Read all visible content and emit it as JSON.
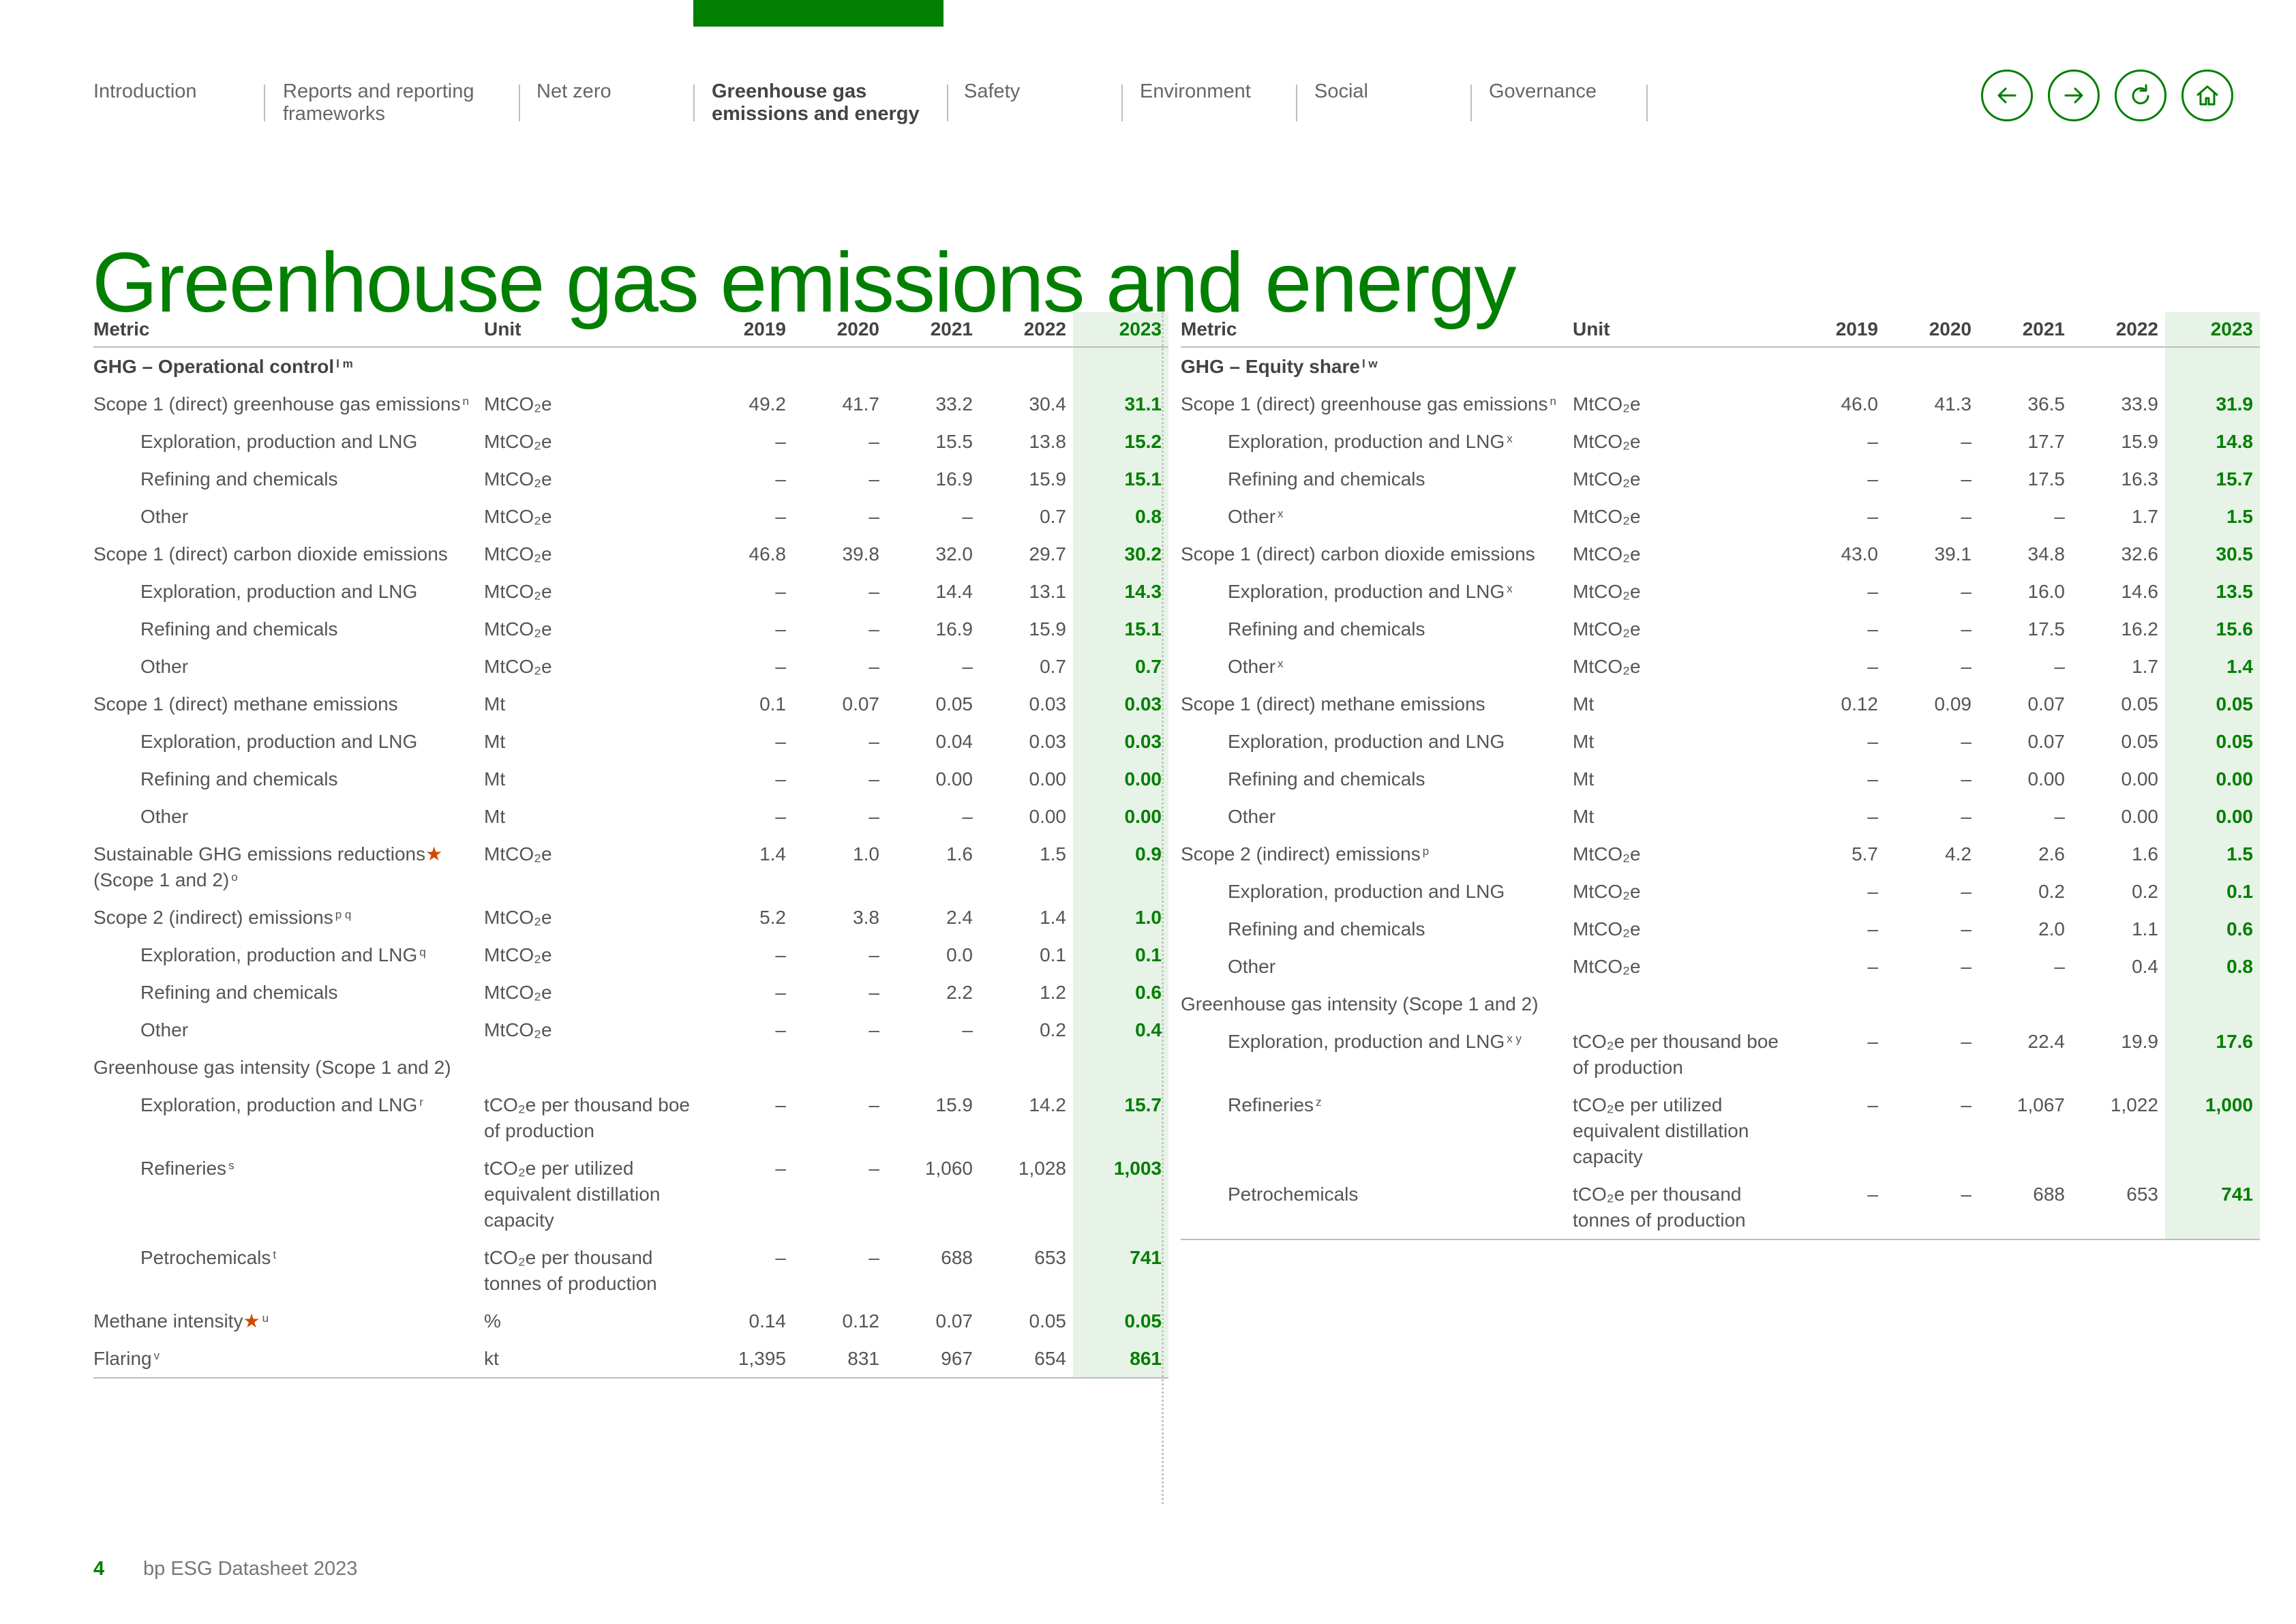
{
  "nav": {
    "items": [
      {
        "label": "Introduction",
        "active": false
      },
      {
        "label": "Reports and reporting frameworks",
        "active": false
      },
      {
        "label": "Net zero",
        "active": false
      },
      {
        "label": "Greenhouse gas emissions and energy",
        "active": true
      },
      {
        "label": "Safety",
        "active": false
      },
      {
        "label": "Environment",
        "active": false
      },
      {
        "label": "Social",
        "active": false
      },
      {
        "label": "Governance",
        "active": false
      }
    ],
    "buttons": [
      "back-arrow-icon",
      "forward-arrow-icon",
      "refresh-icon",
      "home-icon"
    ],
    "accent_color": "#007f00"
  },
  "page_title": "Greenhouse gas emissions and energy",
  "headers": {
    "metric": "Metric",
    "unit": "Unit",
    "years": [
      "2019",
      "2020",
      "2021",
      "2022",
      "2023"
    ]
  },
  "left_table": {
    "rows": [
      {
        "type": "section",
        "metric": "GHG – Operational control",
        "sup": "l m",
        "unit": "",
        "values": [
          "",
          "",
          "",
          "",
          ""
        ]
      },
      {
        "metric": "Scope 1 (direct) greenhouse gas emissions",
        "sup": "n",
        "unit": "MtCO₂e",
        "values": [
          "49.2",
          "41.7",
          "33.2",
          "30.4",
          "31.1"
        ]
      },
      {
        "indent": true,
        "metric": "Exploration, production and LNG",
        "unit": "MtCO₂e",
        "values": [
          "–",
          "–",
          "15.5",
          "13.8",
          "15.2"
        ]
      },
      {
        "indent": true,
        "metric": "Refining and chemicals",
        "unit": "MtCO₂e",
        "values": [
          "–",
          "–",
          "16.9",
          "15.9",
          "15.1"
        ]
      },
      {
        "indent": true,
        "metric": "Other",
        "unit": "MtCO₂e",
        "values": [
          "–",
          "–",
          "–",
          "0.7",
          "0.8"
        ]
      },
      {
        "metric": "Scope 1 (direct) carbon dioxide emissions",
        "unit": "MtCO₂e",
        "values": [
          "46.8",
          "39.8",
          "32.0",
          "29.7",
          "30.2"
        ]
      },
      {
        "indent": true,
        "metric": "Exploration, production and LNG",
        "unit": "MtCO₂e",
        "values": [
          "–",
          "–",
          "14.4",
          "13.1",
          "14.3"
        ]
      },
      {
        "indent": true,
        "metric": "Refining and chemicals",
        "unit": "MtCO₂e",
        "values": [
          "–",
          "–",
          "16.9",
          "15.9",
          "15.1"
        ]
      },
      {
        "indent": true,
        "metric": "Other",
        "unit": "MtCO₂e",
        "values": [
          "–",
          "–",
          "–",
          "0.7",
          "0.7"
        ]
      },
      {
        "metric": "Scope 1 (direct) methane emissions",
        "unit": "Mt",
        "values": [
          "0.1",
          "0.07",
          "0.05",
          "0.03",
          "0.03"
        ]
      },
      {
        "indent": true,
        "metric": "Exploration, production and LNG",
        "unit": "Mt",
        "values": [
          "–",
          "–",
          "0.04",
          "0.03",
          "0.03"
        ]
      },
      {
        "indent": true,
        "metric": "Refining and chemicals",
        "unit": "Mt",
        "values": [
          "–",
          "–",
          "0.00",
          "0.00",
          "0.00"
        ]
      },
      {
        "indent": true,
        "metric": "Other",
        "unit": "Mt",
        "values": [
          "–",
          "–",
          "–",
          "0.00",
          "0.00"
        ]
      },
      {
        "metric": "Sustainable GHG emissions reductions",
        "star": "★",
        "metric2": "(Scope 1 and 2)",
        "sup": "o",
        "unit": "MtCO₂e",
        "values": [
          "1.4",
          "1.0",
          "1.6",
          "1.5",
          "0.9"
        ]
      },
      {
        "metric": "Scope 2 (indirect) emissions",
        "sup": "p q",
        "unit": "MtCO₂e",
        "values": [
          "5.2",
          "3.8",
          "2.4",
          "1.4",
          "1.0"
        ]
      },
      {
        "indent": true,
        "metric": "Exploration, production and LNG",
        "sup": "q",
        "unit": "MtCO₂e",
        "values": [
          "–",
          "–",
          "0.0",
          "0.1",
          "0.1"
        ]
      },
      {
        "indent": true,
        "metric": "Refining and chemicals",
        "unit": "MtCO₂e",
        "values": [
          "–",
          "–",
          "2.2",
          "1.2",
          "0.6"
        ]
      },
      {
        "indent": true,
        "metric": "Other",
        "unit": "MtCO₂e",
        "values": [
          "–",
          "–",
          "–",
          "0.2",
          "0.4"
        ]
      },
      {
        "metric": "Greenhouse gas intensity (Scope 1 and 2)",
        "unit": "",
        "values": [
          "",
          "",
          "",
          "",
          ""
        ]
      },
      {
        "indent": true,
        "metric": "Exploration, production and LNG",
        "sup": "r",
        "unit": "tCO₂e per thousand boe of production",
        "values": [
          "–",
          "–",
          "15.9",
          "14.2",
          "15.7"
        ]
      },
      {
        "indent": true,
        "metric": "Refineries",
        "sup": "s",
        "unit": "tCO₂e per utilized equivalent distillation capacity",
        "values": [
          "–",
          "–",
          "1,060",
          "1,028",
          "1,003"
        ]
      },
      {
        "indent": true,
        "metric": "Petrochemicals",
        "sup": "t",
        "unit": "tCO₂e per thousand tonnes of production",
        "values": [
          "–",
          "–",
          "688",
          "653",
          "741"
        ]
      },
      {
        "metric": "Methane intensity",
        "star": "★",
        "sup": "u",
        "unit": "%",
        "values": [
          "0.14",
          "0.12",
          "0.07",
          "0.05",
          "0.05"
        ]
      },
      {
        "metric": "Flaring",
        "sup": "v",
        "unit": "kt",
        "values": [
          "1,395",
          "831",
          "967",
          "654",
          "861"
        ]
      }
    ]
  },
  "right_table": {
    "rows": [
      {
        "type": "section",
        "metric": "GHG – Equity share",
        "sup": "l w",
        "unit": "",
        "values": [
          "",
          "",
          "",
          "",
          ""
        ]
      },
      {
        "metric": "Scope 1 (direct) greenhouse gas emissions",
        "sup": "n",
        "unit": "MtCO₂e",
        "values": [
          "46.0",
          "41.3",
          "36.5",
          "33.9",
          "31.9"
        ]
      },
      {
        "indent": true,
        "metric": "Exploration, production and LNG",
        "sup": "x",
        "unit": "MtCO₂e",
        "values": [
          "–",
          "–",
          "17.7",
          "15.9",
          "14.8"
        ]
      },
      {
        "indent": true,
        "metric": "Refining and chemicals",
        "unit": "MtCO₂e",
        "values": [
          "–",
          "–",
          "17.5",
          "16.3",
          "15.7"
        ]
      },
      {
        "indent": true,
        "metric": "Other",
        "sup": "x",
        "unit": "MtCO₂e",
        "values": [
          "–",
          "–",
          "–",
          "1.7",
          "1.5"
        ]
      },
      {
        "metric": "Scope 1 (direct) carbon dioxide emissions",
        "unit": "MtCO₂e",
        "values": [
          "43.0",
          "39.1",
          "34.8",
          "32.6",
          "30.5"
        ]
      },
      {
        "indent": true,
        "metric": "Exploration, production and LNG",
        "sup": "x",
        "unit": "MtCO₂e",
        "values": [
          "–",
          "–",
          "16.0",
          "14.6",
          "13.5"
        ]
      },
      {
        "indent": true,
        "metric": "Refining and chemicals",
        "unit": "MtCO₂e",
        "values": [
          "–",
          "–",
          "17.5",
          "16.2",
          "15.6"
        ]
      },
      {
        "indent": true,
        "metric": "Other",
        "sup": "x",
        "unit": "MtCO₂e",
        "values": [
          "–",
          "–",
          "–",
          "1.7",
          "1.4"
        ]
      },
      {
        "metric": "Scope 1 (direct) methane emissions",
        "unit": "Mt",
        "values": [
          "0.12",
          "0.09",
          "0.07",
          "0.05",
          "0.05"
        ]
      },
      {
        "indent": true,
        "metric": "Exploration, production and LNG",
        "unit": "Mt",
        "values": [
          "–",
          "–",
          "0.07",
          "0.05",
          "0.05"
        ]
      },
      {
        "indent": true,
        "metric": "Refining and chemicals",
        "unit": "Mt",
        "values": [
          "–",
          "–",
          "0.00",
          "0.00",
          "0.00"
        ]
      },
      {
        "indent": true,
        "metric": "Other",
        "unit": "Mt",
        "values": [
          "–",
          "–",
          "–",
          "0.00",
          "0.00"
        ]
      },
      {
        "metric": "Scope 2 (indirect) emissions",
        "sup": "p",
        "unit": "MtCO₂e",
        "values": [
          "5.7",
          "4.2",
          "2.6",
          "1.6",
          "1.5"
        ]
      },
      {
        "indent": true,
        "metric": "Exploration, production and LNG",
        "unit": "MtCO₂e",
        "values": [
          "–",
          "–",
          "0.2",
          "0.2",
          "0.1"
        ]
      },
      {
        "indent": true,
        "metric": "Refining and chemicals",
        "unit": "MtCO₂e",
        "values": [
          "–",
          "–",
          "2.0",
          "1.1",
          "0.6"
        ]
      },
      {
        "indent": true,
        "metric": "Other",
        "unit": "MtCO₂e",
        "values": [
          "–",
          "–",
          "–",
          "0.4",
          "0.8"
        ]
      },
      {
        "metric": "Greenhouse gas intensity (Scope 1 and 2)",
        "unit": "",
        "values": [
          "",
          "",
          "",
          "",
          ""
        ]
      },
      {
        "indent": true,
        "metric": "Exploration, production and LNG",
        "sup": "x y",
        "unit": "tCO₂e per thousand boe of production",
        "values": [
          "–",
          "–",
          "22.4",
          "19.9",
          "17.6"
        ]
      },
      {
        "indent": true,
        "metric": "Refineries",
        "sup": "z",
        "unit": "tCO₂e per utilized equivalent distillation capacity",
        "values": [
          "–",
          "–",
          "1,067",
          "1,022",
          "1,000"
        ]
      },
      {
        "indent": true,
        "metric": "Petrochemicals",
        "unit": "tCO₂e per thousand tonnes of production",
        "values": [
          "–",
          "–",
          "688",
          "653",
          "741"
        ]
      }
    ]
  },
  "footer": {
    "page_number": "4",
    "document_title": "bp ESG Datasheet 2023"
  }
}
